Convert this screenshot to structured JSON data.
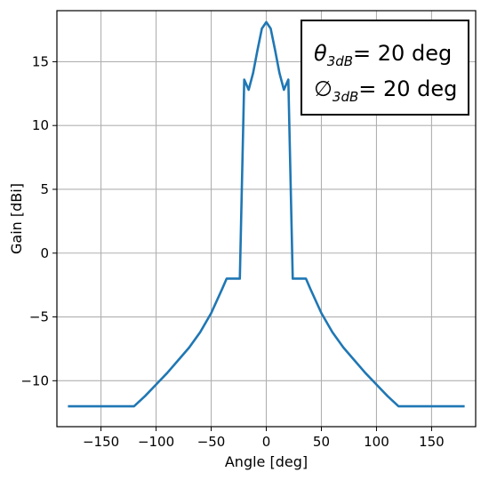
{
  "chart_data": {
    "type": "line",
    "xlabel": "Angle [deg]",
    "ylabel": "Gain [dBi]",
    "xlim": [
      -190,
      190
    ],
    "ylim": [
      -13.6,
      19.0
    ],
    "xticks": [
      -150,
      -100,
      -50,
      0,
      50,
      100,
      150
    ],
    "yticks": [
      -10,
      -5,
      0,
      5,
      10,
      15
    ],
    "grid": true,
    "annotation": {
      "lines": [
        {
          "symbol": "θ",
          "subscript": "3dB",
          "text": "= 20 deg"
        },
        {
          "symbol": "∅",
          "subscript": "3dB",
          "text": "= 20 deg"
        }
      ],
      "placement": "top-right"
    },
    "series": [
      {
        "color": "#1f77b4",
        "x": [
          -180,
          -120,
          -110,
          -100,
          -90,
          -80,
          -70,
          -60,
          -50,
          -40,
          -36,
          -35,
          -25,
          -24,
          -20,
          -16,
          -12,
          -8,
          -4,
          0,
          4,
          8,
          12,
          16,
          20,
          24,
          25,
          35,
          36,
          40,
          50,
          60,
          70,
          80,
          90,
          100,
          110,
          120,
          180
        ],
        "y": [
          -12,
          -12,
          -11.2,
          -10.3,
          -9.4,
          -8.4,
          -7.4,
          -6.2,
          -4.7,
          -2.8,
          -2,
          -2,
          -2,
          -2,
          13.6,
          12.8,
          14.1,
          15.9,
          17.6,
          18.1,
          17.6,
          15.9,
          14.1,
          12.8,
          13.6,
          -2,
          -2,
          -2,
          -2,
          -2.8,
          -4.7,
          -6.2,
          -7.4,
          -8.4,
          -9.4,
          -10.3,
          -11.2,
          -12,
          -12
        ]
      }
    ]
  }
}
